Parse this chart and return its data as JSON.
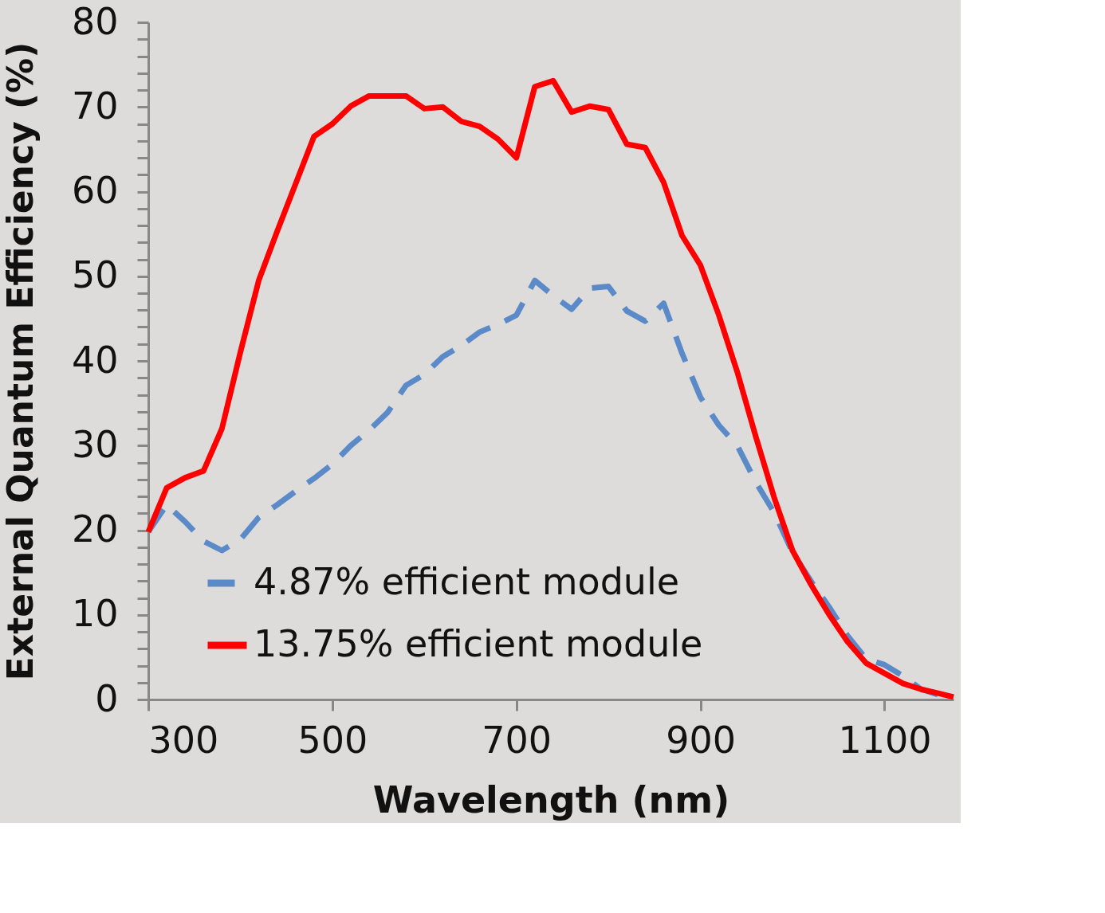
{
  "chart_data": {
    "type": "line",
    "xlabel": "Wavelength (nm)",
    "ylabel": "External Quantum Efficiency (%)",
    "x": [
      300,
      320,
      340,
      360,
      380,
      400,
      420,
      440,
      460,
      480,
      500,
      520,
      540,
      560,
      580,
      600,
      620,
      640,
      660,
      680,
      700,
      720,
      740,
      760,
      780,
      800,
      820,
      840,
      860,
      880,
      900,
      920,
      940,
      960,
      980,
      1000,
      1020,
      1040,
      1060,
      1080,
      1100,
      1120,
      1140,
      1160,
      1175
    ],
    "series": [
      {
        "name": "4.87% efficient module",
        "color": "#5b8ac8",
        "line_style": "dashed",
        "values": [
          19.8,
          23,
          21,
          18.7,
          17.6,
          18.9,
          21.5,
          23,
          24.6,
          26.1,
          27.8,
          30,
          31.8,
          33.9,
          37.1,
          38.4,
          40.5,
          41.8,
          43.4,
          44.3,
          45.4,
          49.5,
          47.7,
          46.1,
          48.6,
          48.8,
          45.9,
          44.7,
          46.8,
          40.9,
          35.7,
          32.4,
          30,
          25.7,
          22.1,
          17.4,
          14,
          10.9,
          7.5,
          4.8,
          4.1,
          2.8,
          1.2,
          0.5,
          0.3
        ]
      },
      {
        "name": "13.75% efficient module",
        "color": "#ff0000",
        "line_style": "solid",
        "values": [
          19.8,
          25,
          26.2,
          27,
          32,
          41,
          49.5,
          55.3,
          60.9,
          66.5,
          68,
          70.1,
          71.3,
          71.3,
          71.3,
          69.8,
          70,
          68.3,
          67.7,
          66.2,
          64,
          72.4,
          73.1,
          69.4,
          70.1,
          69.7,
          65.6,
          65.2,
          61.1,
          54.8,
          51.3,
          45.4,
          38.7,
          31.1,
          23.9,
          17.6,
          13.6,
          10,
          6.8,
          4.3,
          3.1,
          1.9,
          1.2,
          0.7,
          0.3
        ]
      }
    ],
    "xlim": [
      300,
      1175
    ],
    "xticks": [
      300,
      500,
      700,
      900,
      1100
    ],
    "ylim": [
      0,
      80
    ],
    "yticks": [
      0,
      {
        "value": 2,
        "label": null
      },
      {
        "value": 4,
        "label": null
      },
      {
        "value": 6,
        "label": null
      },
      {
        "value": 8,
        "label": null
      },
      10,
      {
        "value": 12,
        "label": null
      },
      {
        "value": 14,
        "label": null
      },
      {
        "value": 16,
        "label": null
      },
      {
        "value": 18,
        "label": null
      },
      20,
      {
        "value": 22,
        "label": null
      },
      {
        "value": 24,
        "label": null
      },
      {
        "value": 26,
        "label": null
      },
      {
        "value": 28,
        "label": null
      },
      30,
      {
        "value": 32,
        "label": null
      },
      {
        "value": 34,
        "label": null
      },
      {
        "value": 36,
        "label": null
      },
      {
        "value": 38,
        "label": null
      },
      40,
      {
        "value": 42,
        "label": null
      },
      {
        "value": 44,
        "label": null
      },
      {
        "value": 46,
        "label": null
      },
      {
        "value": 48,
        "label": null
      },
      50,
      {
        "value": 52,
        "label": null
      },
      {
        "value": 54,
        "label": null
      },
      {
        "value": 56,
        "label": null
      },
      {
        "value": 58,
        "label": null
      },
      60,
      {
        "value": 62,
        "label": null
      },
      {
        "value": 64,
        "label": null
      },
      {
        "value": 66,
        "label": null
      },
      {
        "value": 68,
        "label": null
      },
      70,
      {
        "value": 72,
        "label": null
      },
      {
        "value": 74,
        "label": null
      },
      {
        "value": 76,
        "label": null
      },
      {
        "value": 78,
        "label": null
      },
      80
    ],
    "legend": "bottom",
    "marker": "none"
  }
}
